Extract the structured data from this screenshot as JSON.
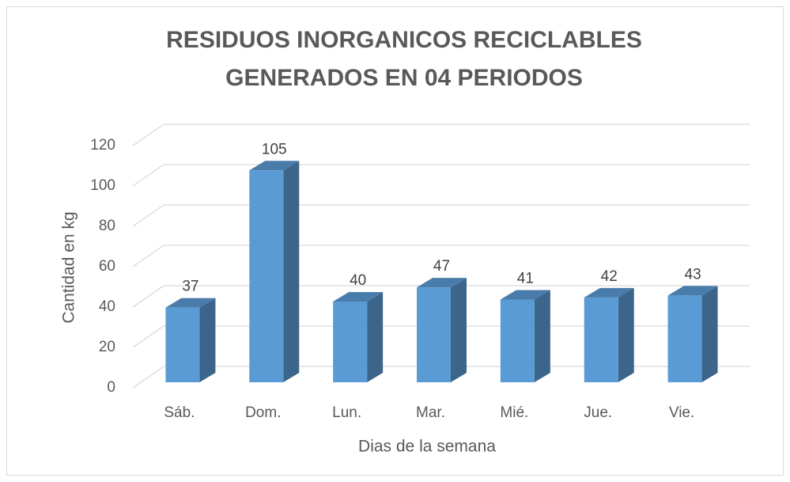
{
  "chart_data": {
    "type": "bar3d",
    "title": [
      "RESIDUOS INORGANICOS RECICLABLES",
      "GENERADOS EN 04 PERIODOS"
    ],
    "x_label": "Dias de la semana",
    "y_label": "Cantidad en kg",
    "categories": [
      "Sáb.",
      "Dom.",
      "Lun.",
      "Mar.",
      "Mié.",
      "Jue.",
      "Vie."
    ],
    "values": [
      37,
      105,
      40,
      47,
      41,
      42,
      43
    ],
    "color": "#5b9bd5",
    "ylim": [
      0,
      120
    ],
    "yticks": [
      0,
      20,
      40,
      60,
      80,
      100,
      120
    ],
    "grid": true
  }
}
